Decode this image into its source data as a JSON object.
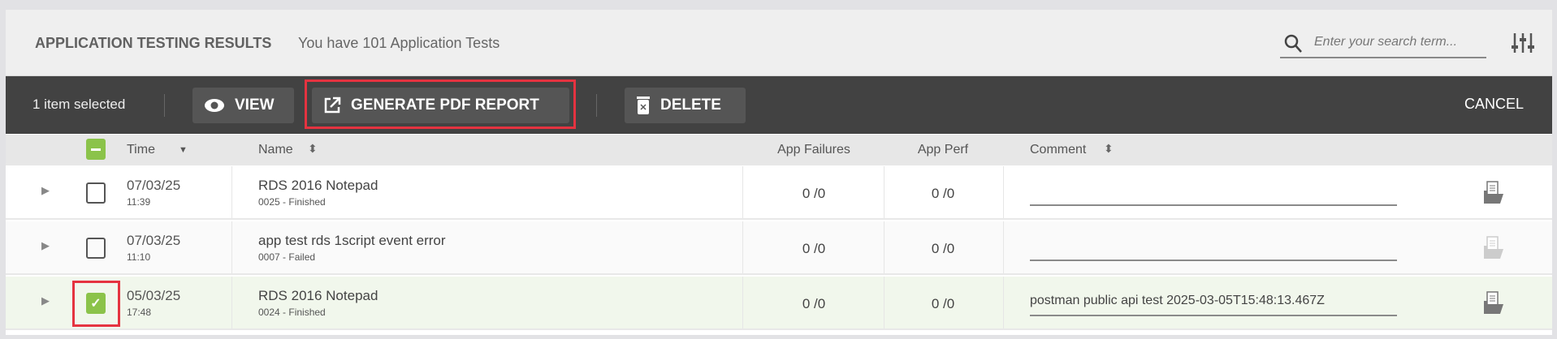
{
  "header": {
    "title": "APPLICATION TESTING RESULTS",
    "subtitle": "You have 101 Application Tests",
    "search_placeholder": "Enter your search term...",
    "search_icon": "search-icon",
    "filter_icon": "sliders-icon"
  },
  "toolbar": {
    "selection": "1 item selected",
    "view": "VIEW",
    "generate": "GENERATE PDF REPORT",
    "delete": "DELETE",
    "cancel": "CANCEL"
  },
  "columns": {
    "time": "Time",
    "name": "Name",
    "app_failures": "App Failures",
    "app_perf": "App Perf",
    "comment": "Comment"
  },
  "rows": [
    {
      "date": "07/03/25",
      "time": "11:39",
      "name": "RDS 2016 Notepad",
      "sub": "0025 - Finished",
      "failures": "0 /0",
      "perf": "0 /0",
      "comment": "",
      "checked": false
    },
    {
      "date": "07/03/25",
      "time": "11:10",
      "name": "app test rds 1script event error",
      "sub": "0007 - Failed",
      "failures": "0 /0",
      "perf": "0 /0",
      "comment": "",
      "checked": false
    },
    {
      "date": "05/03/25",
      "time": "17:48",
      "name": "RDS 2016 Notepad",
      "sub": "0024 - Finished",
      "failures": "0 /0",
      "perf": "0 /0",
      "comment": "postman public api test 2025-03-05T15:48:13.467Z",
      "checked": true
    }
  ],
  "colors": {
    "toolbar": "#424242",
    "accent_green": "#8bc34a",
    "highlight_red": "#e53340",
    "selected_row": "#f1f7ec"
  }
}
